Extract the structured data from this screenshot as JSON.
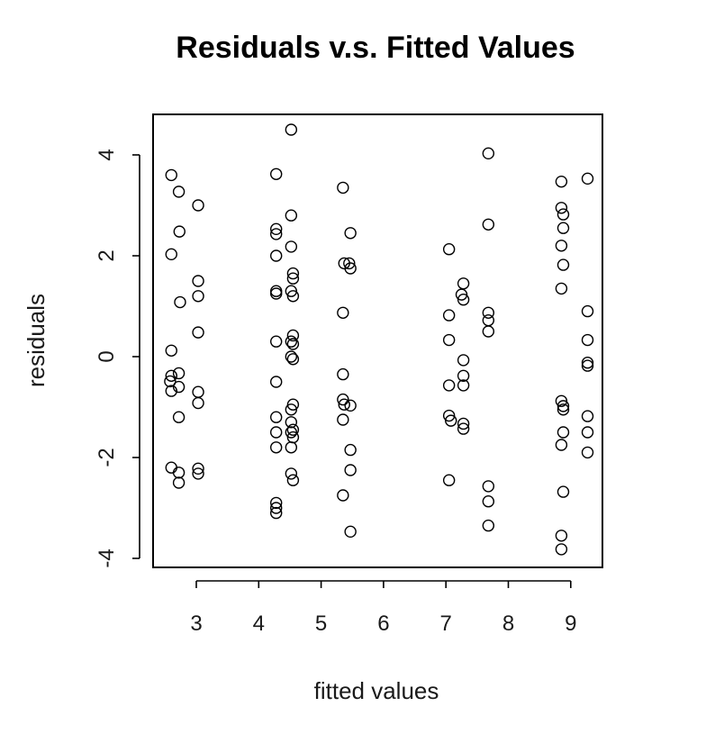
{
  "chart_data": {
    "type": "scatter",
    "title": "Residuals v.s. Fitted Values",
    "xlabel": "fitted values",
    "ylabel": "residuals",
    "xlim": [
      2.5,
      9.5
    ],
    "ylim": [
      -4.2,
      4.8
    ],
    "x_ticks": [
      3,
      4,
      5,
      6,
      7,
      8,
      9
    ],
    "y_ticks": [
      4,
      2,
      0,
      -2,
      -4
    ],
    "grid": false,
    "points": [
      {
        "x": 2.6,
        "y": 3.6
      },
      {
        "x": 2.72,
        "y": 3.27
      },
      {
        "x": 2.73,
        "y": 2.48
      },
      {
        "x": 2.6,
        "y": 2.03
      },
      {
        "x": 2.74,
        "y": 1.08
      },
      {
        "x": 2.6,
        "y": 0.12
      },
      {
        "x": 2.6,
        "y": -0.38
      },
      {
        "x": 2.58,
        "y": -0.49
      },
      {
        "x": 2.72,
        "y": -0.33
      },
      {
        "x": 2.6,
        "y": -0.68
      },
      {
        "x": 2.72,
        "y": -0.6
      },
      {
        "x": 2.72,
        "y": -1.2
      },
      {
        "x": 2.6,
        "y": -2.2
      },
      {
        "x": 2.72,
        "y": -2.3
      },
      {
        "x": 2.72,
        "y": -2.5
      },
      {
        "x": 3.03,
        "y": 3.0
      },
      {
        "x": 3.03,
        "y": 1.5
      },
      {
        "x": 3.03,
        "y": 1.2
      },
      {
        "x": 3.03,
        "y": 0.48
      },
      {
        "x": 3.03,
        "y": -0.7
      },
      {
        "x": 3.03,
        "y": -0.92
      },
      {
        "x": 3.03,
        "y": -2.22
      },
      {
        "x": 3.03,
        "y": -2.32
      },
      {
        "x": 4.28,
        "y": 3.62
      },
      {
        "x": 4.28,
        "y": 2.53
      },
      {
        "x": 4.28,
        "y": 2.43
      },
      {
        "x": 4.28,
        "y": 2.0
      },
      {
        "x": 4.28,
        "y": 1.3
      },
      {
        "x": 4.28,
        "y": 1.25
      },
      {
        "x": 4.28,
        "y": 0.3
      },
      {
        "x": 4.28,
        "y": -0.5
      },
      {
        "x": 4.28,
        "y": -1.2
      },
      {
        "x": 4.28,
        "y": -1.5
      },
      {
        "x": 4.28,
        "y": -1.8
      },
      {
        "x": 4.28,
        "y": -2.9
      },
      {
        "x": 4.28,
        "y": -3.0
      },
      {
        "x": 4.28,
        "y": -3.1
      },
      {
        "x": 4.52,
        "y": 4.5
      },
      {
        "x": 4.52,
        "y": 2.8
      },
      {
        "x": 4.52,
        "y": 2.18
      },
      {
        "x": 4.55,
        "y": 1.65
      },
      {
        "x": 4.55,
        "y": 1.55
      },
      {
        "x": 4.52,
        "y": 1.3
      },
      {
        "x": 4.55,
        "y": 1.2
      },
      {
        "x": 4.55,
        "y": 0.42
      },
      {
        "x": 4.52,
        "y": 0.3
      },
      {
        "x": 4.55,
        "y": 0.25
      },
      {
        "x": 4.52,
        "y": 0.0
      },
      {
        "x": 4.55,
        "y": -0.05
      },
      {
        "x": 4.55,
        "y": -0.95
      },
      {
        "x": 4.52,
        "y": -1.05
      },
      {
        "x": 4.52,
        "y": -1.3
      },
      {
        "x": 4.55,
        "y": -1.45
      },
      {
        "x": 4.52,
        "y": -1.5
      },
      {
        "x": 4.55,
        "y": -1.6
      },
      {
        "x": 4.52,
        "y": -1.8
      },
      {
        "x": 4.52,
        "y": -2.32
      },
      {
        "x": 4.55,
        "y": -2.45
      },
      {
        "x": 5.35,
        "y": 3.35
      },
      {
        "x": 5.47,
        "y": 2.45
      },
      {
        "x": 5.37,
        "y": 1.85
      },
      {
        "x": 5.45,
        "y": 1.85
      },
      {
        "x": 5.47,
        "y": 1.75
      },
      {
        "x": 5.35,
        "y": 0.87
      },
      {
        "x": 5.35,
        "y": -0.35
      },
      {
        "x": 5.35,
        "y": -0.85
      },
      {
        "x": 5.37,
        "y": -0.95
      },
      {
        "x": 5.47,
        "y": -0.97
      },
      {
        "x": 5.35,
        "y": -1.25
      },
      {
        "x": 5.47,
        "y": -1.85
      },
      {
        "x": 5.47,
        "y": -2.25
      },
      {
        "x": 5.35,
        "y": -2.75
      },
      {
        "x": 5.47,
        "y": -3.47
      },
      {
        "x": 7.05,
        "y": 2.13
      },
      {
        "x": 7.05,
        "y": 0.82
      },
      {
        "x": 7.05,
        "y": 0.33
      },
      {
        "x": 7.05,
        "y": -0.57
      },
      {
        "x": 7.05,
        "y": -1.17
      },
      {
        "x": 7.08,
        "y": -1.27
      },
      {
        "x": 7.05,
        "y": -2.45
      },
      {
        "x": 7.28,
        "y": 1.45
      },
      {
        "x": 7.25,
        "y": 1.23
      },
      {
        "x": 7.28,
        "y": 1.13
      },
      {
        "x": 7.28,
        "y": -0.07
      },
      {
        "x": 7.28,
        "y": -0.38
      },
      {
        "x": 7.28,
        "y": -0.57
      },
      {
        "x": 7.28,
        "y": -1.33
      },
      {
        "x": 7.28,
        "y": -1.43
      },
      {
        "x": 7.68,
        "y": 4.03
      },
      {
        "x": 7.68,
        "y": 2.62
      },
      {
        "x": 7.68,
        "y": 0.87
      },
      {
        "x": 7.68,
        "y": 0.72
      },
      {
        "x": 7.68,
        "y": 0.5
      },
      {
        "x": 7.68,
        "y": -2.57
      },
      {
        "x": 7.68,
        "y": -2.87
      },
      {
        "x": 7.68,
        "y": -3.35
      },
      {
        "x": 8.85,
        "y": 3.47
      },
      {
        "x": 8.85,
        "y": 2.95
      },
      {
        "x": 8.88,
        "y": 2.82
      },
      {
        "x": 8.88,
        "y": 2.55
      },
      {
        "x": 8.85,
        "y": 2.2
      },
      {
        "x": 8.88,
        "y": 1.82
      },
      {
        "x": 8.85,
        "y": 1.35
      },
      {
        "x": 8.85,
        "y": -0.88
      },
      {
        "x": 8.88,
        "y": -0.98
      },
      {
        "x": 8.88,
        "y": -1.05
      },
      {
        "x": 8.88,
        "y": -1.5
      },
      {
        "x": 8.85,
        "y": -1.75
      },
      {
        "x": 8.88,
        "y": -2.68
      },
      {
        "x": 8.85,
        "y": -3.55
      },
      {
        "x": 8.85,
        "y": -3.82
      },
      {
        "x": 9.27,
        "y": 3.53
      },
      {
        "x": 9.27,
        "y": 0.9
      },
      {
        "x": 9.27,
        "y": 0.33
      },
      {
        "x": 9.27,
        "y": -0.12
      },
      {
        "x": 9.27,
        "y": -0.18
      },
      {
        "x": 9.27,
        "y": -1.18
      },
      {
        "x": 9.27,
        "y": -1.5
      },
      {
        "x": 9.27,
        "y": -1.9
      }
    ]
  }
}
